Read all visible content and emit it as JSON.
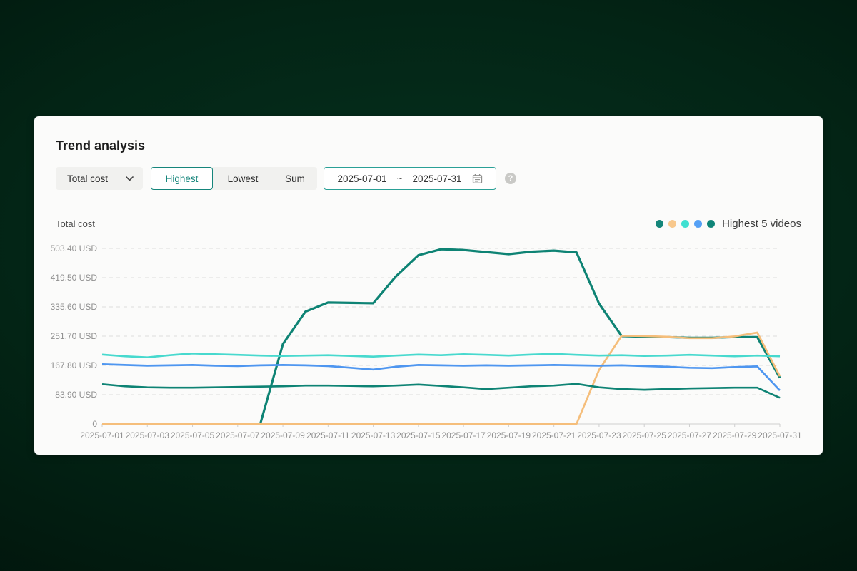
{
  "theme": {
    "accent_teal": "#15857b",
    "card_background": "#fbfbfa",
    "control_background": "#f1f1ef",
    "grid_color": "#dcdcdc",
    "axis_color": "#cfcfcf",
    "label_color": "#909090"
  },
  "card": {
    "title": "Trend analysis"
  },
  "controls": {
    "metric_dropdown": {
      "value": "Total cost"
    },
    "tabs": [
      {
        "label": "Highest",
        "active": true
      },
      {
        "label": "Lowest",
        "active": false
      },
      {
        "label": "Sum",
        "active": false
      }
    ],
    "date_range": {
      "start": "2025-07-01",
      "separator": "~",
      "end": "2025-07-31"
    },
    "help_icon_glyph": "?"
  },
  "chart": {
    "axis_title": "Total cost",
    "legend_label": "Highest 5 videos",
    "legend_dot_colors": [
      "#15867A",
      "#F8C88C",
      "#3FE0D1",
      "#55A0F5",
      "#0F8578"
    ]
  },
  "chart_data": {
    "type": "line",
    "title": "Total cost",
    "unit": "USD",
    "legend": {
      "label": "Highest 5 videos",
      "position": "top-right"
    },
    "grid": "dashed-horizontal",
    "ylim": [
      0,
      503.4
    ],
    "y_axis": {
      "max": 503.4,
      "tick_values": [
        0,
        83.9,
        167.8,
        251.7,
        335.6,
        419.5,
        503.4
      ],
      "tick_labels": [
        "0",
        "83.90 USD",
        "167.80 USD",
        "251.70 USD",
        "335.60 USD",
        "419.50 USD",
        "503.40 USD"
      ]
    },
    "x_label_every": 2,
    "x": [
      "2025-07-01",
      "2025-07-02",
      "2025-07-03",
      "2025-07-04",
      "2025-07-05",
      "2025-07-06",
      "2025-07-07",
      "2025-07-08",
      "2025-07-09",
      "2025-07-10",
      "2025-07-11",
      "2025-07-12",
      "2025-07-13",
      "2025-07-14",
      "2025-07-15",
      "2025-07-16",
      "2025-07-17",
      "2025-07-18",
      "2025-07-19",
      "2025-07-20",
      "2025-07-21",
      "2025-07-22",
      "2025-07-23",
      "2025-07-24",
      "2025-07-25",
      "2025-07-26",
      "2025-07-27",
      "2025-07-28",
      "2025-07-29",
      "2025-07-30",
      "2025-07-31"
    ],
    "series": [
      {
        "name": "series-1",
        "color": "#0E8374",
        "values": [
          0,
          0,
          0,
          0,
          0,
          0,
          0,
          0,
          229,
          322,
          348,
          347,
          346,
          423,
          484,
          501,
          499,
          493,
          487,
          494,
          497,
          492,
          345,
          252,
          250,
          249,
          247,
          247,
          249,
          249,
          132
        ]
      },
      {
        "name": "series-2",
        "color": "#F5BE7B",
        "values": [
          0,
          0,
          0,
          0,
          0,
          0,
          0,
          0,
          0,
          0,
          0,
          0,
          0,
          0,
          0,
          0,
          0,
          0,
          0,
          0,
          0,
          0,
          155,
          253,
          252,
          250,
          246,
          246,
          251,
          262,
          137
        ]
      },
      {
        "name": "series-3",
        "color": "#47D9CE",
        "values": [
          199,
          194,
          191,
          197,
          202,
          200,
          198,
          196,
          195,
          196,
          197,
          195,
          193,
          196,
          199,
          197,
          200,
          198,
          196,
          199,
          201,
          198,
          196,
          197,
          195,
          196,
          198,
          196,
          194,
          196,
          194
        ]
      },
      {
        "name": "series-4",
        "color": "#4E96F0",
        "values": [
          171,
          169,
          167,
          168,
          169,
          167,
          166,
          168,
          169,
          168,
          166,
          161,
          156,
          164,
          169,
          168,
          167,
          168,
          167,
          168,
          169,
          168,
          167,
          168,
          166,
          164,
          161,
          160,
          163,
          165,
          96
        ]
      },
      {
        "name": "series-5",
        "color": "#0E8374",
        "values": [
          114,
          108,
          105,
          104,
          104,
          105,
          106,
          107,
          108,
          110,
          110,
          109,
          108,
          110,
          113,
          109,
          105,
          100,
          104,
          108,
          110,
          115,
          105,
          100,
          98,
          100,
          102,
          103,
          104,
          104,
          75
        ]
      }
    ]
  }
}
